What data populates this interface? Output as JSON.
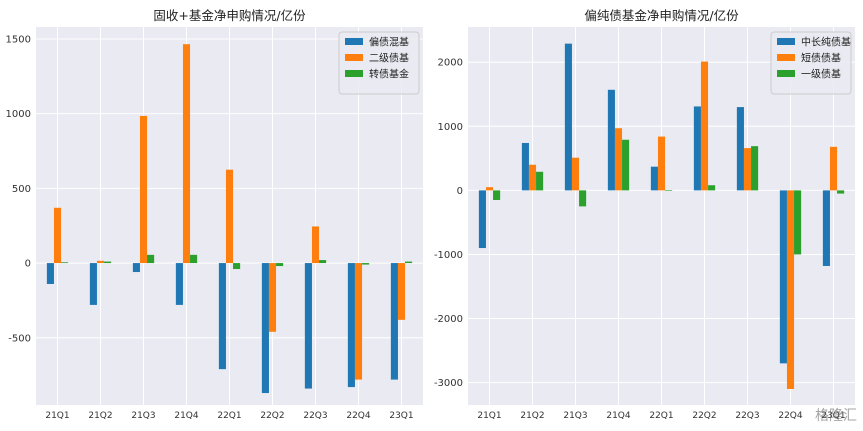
{
  "watermark": "格隆汇",
  "chart_data": [
    {
      "type": "bar",
      "title": "固收+基金净申购情况/亿份",
      "categories": [
        "21Q1",
        "21Q2",
        "21Q3",
        "21Q4",
        "22Q1",
        "22Q2",
        "22Q3",
        "22Q4",
        "23Q1"
      ],
      "ylim": [
        -950,
        1580
      ],
      "yticks": [
        -500,
        0,
        500,
        1000,
        1500
      ],
      "grid": true,
      "legend_position": "top-right",
      "series": [
        {
          "name": "偏债混基",
          "color": "#1f77b4",
          "values": [
            -140,
            -280,
            -60,
            -280,
            -710,
            -870,
            -840,
            -830,
            -780
          ]
        },
        {
          "name": "二级债基",
          "color": "#ff7f0e",
          "values": [
            370,
            15,
            985,
            1465,
            625,
            -460,
            245,
            -780,
            -380
          ]
        },
        {
          "name": "转债基金",
          "color": "#2ca02c",
          "values": [
            5,
            10,
            55,
            55,
            -40,
            -20,
            20,
            -10,
            10
          ]
        }
      ]
    },
    {
      "type": "bar",
      "title": "偏纯债基金净申购情况/亿份",
      "categories": [
        "21Q1",
        "21Q2",
        "21Q3",
        "21Q4",
        "22Q1",
        "22Q2",
        "22Q3",
        "22Q4",
        "23Q1"
      ],
      "ylim": [
        -3350,
        2550
      ],
      "yticks": [
        -3000,
        -2000,
        -1000,
        0,
        1000,
        2000
      ],
      "grid": true,
      "legend_position": "top-right",
      "series": [
        {
          "name": "中长纯债基",
          "color": "#1f77b4",
          "values": [
            -900,
            740,
            2290,
            1570,
            370,
            1310,
            1300,
            -2700,
            -1180
          ]
        },
        {
          "name": "短债债基",
          "color": "#ff7f0e",
          "values": [
            50,
            400,
            510,
            970,
            840,
            2010,
            660,
            -3100,
            680
          ]
        },
        {
          "name": "一级债基",
          "color": "#2ca02c",
          "values": [
            -150,
            290,
            -250,
            790,
            0,
            80,
            690,
            -1000,
            -50
          ]
        }
      ]
    }
  ]
}
